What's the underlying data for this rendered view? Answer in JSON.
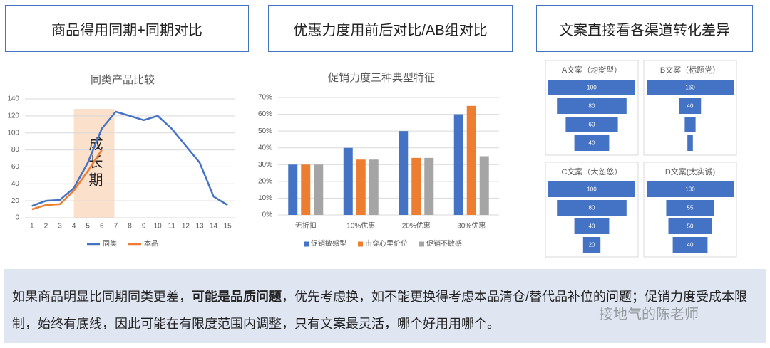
{
  "headers": [
    "商品得用同期+同期对比",
    "优惠力度用前后对比/AB组对比",
    "文案直接看各渠道转化差异"
  ],
  "chart_data": [
    {
      "type": "line",
      "title": "同类产品比较",
      "x": [
        1,
        2,
        3,
        4,
        5,
        6,
        7,
        8,
        9,
        10,
        11,
        12,
        13,
        14,
        15
      ],
      "xlim": [
        0.5,
        15.5
      ],
      "xticks": [
        1,
        2,
        3,
        4,
        5,
        6,
        7,
        8,
        9,
        10,
        11,
        12,
        13,
        14,
        15
      ],
      "ylim": [
        0,
        140
      ],
      "yticks": [
        0,
        20,
        40,
        60,
        80,
        100,
        120,
        140
      ],
      "grid": true,
      "series": [
        {
          "name": "同类",
          "color": "#4472c4",
          "values": [
            14,
            20,
            21,
            35,
            65,
            105,
            125,
            120,
            115,
            120,
            105,
            85,
            65,
            25,
            15
          ]
        },
        {
          "name": "本品",
          "color": "#ed7d31",
          "values": [
            10,
            15,
            16,
            32,
            55,
            80,
            null,
            null,
            null,
            null,
            null,
            null,
            null,
            null,
            null
          ]
        }
      ],
      "highlight": {
        "label": "成长期",
        "x": [
          4,
          6.9
        ],
        "color": "#fbe0cc"
      },
      "legend": "bottom"
    },
    {
      "type": "bar",
      "title": "促销力度三种典型特征",
      "categories": [
        "无折扣",
        "10%优惠",
        "20%优惠",
        "30%优惠"
      ],
      "ylim": [
        0,
        70
      ],
      "yticks": [
        {
          "value": 0,
          "label": "0%"
        },
        {
          "value": 10,
          "label": "10%"
        },
        {
          "value": 20,
          "label": "20%"
        },
        {
          "value": 30,
          "label": "30%"
        },
        {
          "value": 40,
          "label": "40%"
        },
        {
          "value": 50,
          "label": "50%"
        },
        {
          "value": 60,
          "label": "60%"
        },
        {
          "value": 70,
          "label": "70%"
        }
      ],
      "grid": true,
      "series": [
        {
          "name": "促销敏感型",
          "color": "#4472c4",
          "values": [
            30,
            40,
            50,
            60
          ]
        },
        {
          "name": "击穿心里价位",
          "color": "#ed7d31",
          "values": [
            30,
            33,
            34,
            65
          ]
        },
        {
          "name": "促销不敏感",
          "color": "#a5a5a5",
          "values": [
            30,
            33,
            34,
            35
          ]
        }
      ],
      "legend": "bottom"
    },
    {
      "type": "funnel",
      "title": "A文案（均衡型）",
      "values": [
        100,
        80,
        60,
        40
      ],
      "color": "#4472c4"
    },
    {
      "type": "funnel",
      "title": "B文案（标题党）",
      "values": [
        160,
        40,
        20,
        10
      ],
      "color": "#4472c4"
    },
    {
      "type": "funnel",
      "title": "C文案（大忽悠）",
      "values": [
        100,
        80,
        40,
        20
      ],
      "color": "#4472c4"
    },
    {
      "type": "funnel",
      "title": "D文案(太实诚)",
      "values": [
        100,
        55,
        50,
        40
      ],
      "color": "#4472c4"
    }
  ],
  "note": {
    "before": "如果商品明显比同期同类更差，",
    "bold": "可能是品质问题",
    "after": "，优先考虑换，如不能更换得考虑本品清仓/替代品补位的问题；促销力度受成本限制，始终有底线，因此可能在有限度范围内调整，只有文案最灵活，哪个好用用哪个。"
  },
  "watermark": "接地气的陈老师"
}
